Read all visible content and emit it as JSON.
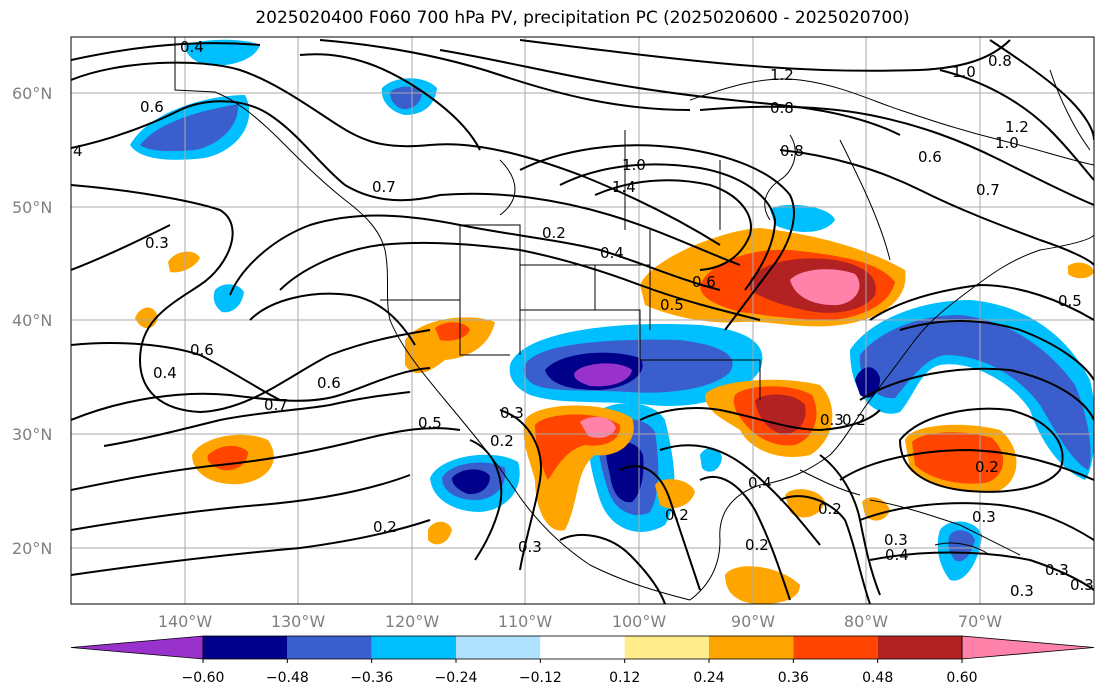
{
  "title": "2025020400 F060 700 hPa PV, precipitation PC (2025020600 - 2025020700)",
  "latitude_labels": [
    "60°N",
    "50°N",
    "40°N",
    "30°N",
    "20°N"
  ],
  "longitude_labels": [
    "140°W",
    "130°W",
    "120°W",
    "110°W",
    "100°W",
    "90°W",
    "80°W",
    "70°W"
  ],
  "colorbar": {
    "colors": [
      "#9932cc",
      "#00008b",
      "#3a5fcd",
      "#00bfff",
      "#b0e2ff",
      "#ffffff",
      "#ffec8b",
      "#ffa500",
      "#ff4500",
      "#b22222",
      "#ff82ab"
    ],
    "tick_labels": [
      "−0.60",
      "−0.48",
      "−0.36",
      "−0.24",
      "−0.12",
      "0.12",
      "0.24",
      "0.36",
      "0.48",
      "0.60"
    ]
  },
  "contour_labels": [
    "0.4",
    "0.6",
    "4",
    "0.7",
    "0.3",
    "0.6",
    "0.4",
    "0.7",
    "0.6",
    "0.5",
    "0.3",
    "0.2",
    "0.2",
    "0.3",
    "0.2",
    "0.4",
    "0.5",
    "0.6",
    "0.2",
    "1.0",
    "1.4",
    "1.2",
    "0.8",
    "0.8",
    "1.0",
    "0.8",
    "0.6",
    "1.0",
    "1.2",
    "0.7",
    "0.5",
    "0.3",
    "0.4",
    "0.2",
    "0.2",
    "0.3",
    "0.2",
    "0.3",
    "0.2",
    "0.4",
    "0.3",
    "0.3",
    "0.3"
  ]
}
